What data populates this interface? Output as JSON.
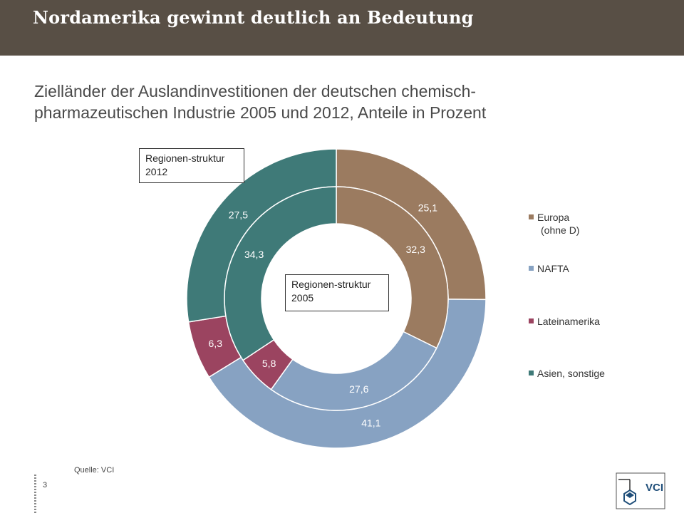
{
  "header": {
    "title": "Nordamerika gewinnt deutlich an Bedeutung"
  },
  "subtitle": "Zielländer der Auslandinvestitionen der deutschen chemisch-pharmazeutischen Industrie 2005 und 2012, Anteile in Prozent",
  "callouts": {
    "outer": "Regionen-struktur 2012",
    "inner": "Regionen-struktur 2005"
  },
  "legend": {
    "items": [
      {
        "line1": "Europa",
        "line2": "(ohne D)"
      },
      {
        "line1": "NAFTA",
        "line2": ""
      },
      {
        "line1": "Lateinamerika",
        "line2": ""
      },
      {
        "line1": "Asien, sonstige",
        "line2": ""
      }
    ]
  },
  "footer": {
    "source": "Quelle:  VCI",
    "page": "3",
    "logo_text": "VCI"
  },
  "chart_data": {
    "type": "pie",
    "categories": [
      "Europa (ohne D)",
      "NAFTA",
      "Lateinamerika",
      "Asien, sonstige"
    ],
    "colors": [
      "#9b7b60",
      "#87a2c2",
      "#9b4460",
      "#3f7a78"
    ],
    "series": [
      {
        "name": "Regionenstruktur 2012",
        "values": [
          25.1,
          41.1,
          6.3,
          27.5
        ],
        "labels": [
          "25,1",
          "41,1",
          "6,3",
          "27,5"
        ]
      },
      {
        "name": "Regionenstruktur 2005",
        "values": [
          32.3,
          27.6,
          5.8,
          34.3
        ],
        "labels": [
          "32,3",
          "27,6",
          "5,8",
          "34,3"
        ]
      }
    ],
    "title": "",
    "xlabel": "",
    "ylabel": ""
  }
}
